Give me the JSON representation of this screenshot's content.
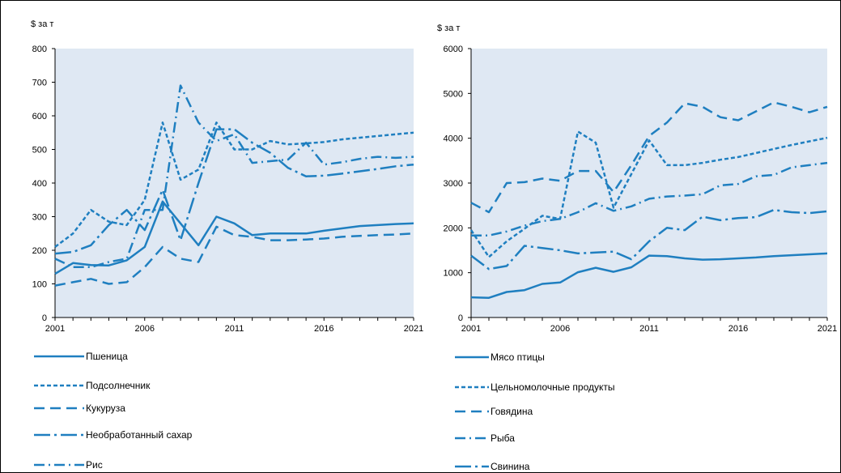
{
  "chart_data": [
    {
      "type": "line",
      "ylabel": "$ за т",
      "ylim": [
        0,
        800
      ],
      "yticks": [
        0,
        100,
        200,
        300,
        400,
        500,
        600,
        700,
        800
      ],
      "xlim": [
        2001,
        2021
      ],
      "xticks": [
        2001,
        2006,
        2011,
        2016,
        2021
      ],
      "grid": false,
      "legend_position": "bottom",
      "series": [
        {
          "name": "Пшеница",
          "style": "solid",
          "x": [
            2001,
            2002,
            2003,
            2004,
            2005,
            2006,
            2007,
            2008,
            2009,
            2010,
            2011,
            2012,
            2013,
            2014,
            2015,
            2016,
            2017,
            2018,
            2019,
            2020,
            2021
          ],
          "y": [
            130,
            162,
            156,
            155,
            170,
            210,
            345,
            280,
            215,
            300,
            280,
            245,
            250,
            250,
            250,
            258,
            265,
            272,
            275,
            278,
            280
          ]
        },
        {
          "name": "Подсолнечник",
          "style": "dashed",
          "x": [
            2001,
            2002,
            2003,
            2004,
            2005,
            2006,
            2007,
            2008,
            2009,
            2010,
            2011,
            2012,
            2013,
            2014,
            2015,
            2016,
            2017,
            2018,
            2019,
            2020,
            2021
          ],
          "y": [
            210,
            250,
            320,
            285,
            275,
            350,
            580,
            410,
            440,
            580,
            500,
            500,
            525,
            515,
            518,
            522,
            530,
            535,
            540,
            545,
            550
          ]
        },
        {
          "name": "Кукуруза",
          "style": "long-dash",
          "x": [
            2001,
            2002,
            2003,
            2004,
            2005,
            2006,
            2007,
            2008,
            2009,
            2010,
            2011,
            2012,
            2013,
            2014,
            2015,
            2016,
            2017,
            2018,
            2019,
            2020,
            2021
          ],
          "y": [
            95,
            105,
            115,
            100,
            105,
            150,
            210,
            175,
            165,
            270,
            245,
            240,
            230,
            230,
            232,
            235,
            240,
            243,
            245,
            247,
            250
          ]
        },
        {
          "name": "Необработанный сахар",
          "style": "long-dash-dot",
          "x": [
            2001,
            2002,
            2003,
            2004,
            2005,
            2006,
            2007,
            2008,
            2009,
            2010,
            2011,
            2012,
            2013,
            2014,
            2015,
            2016,
            2017,
            2018,
            2019,
            2020,
            2021
          ],
          "y": [
            190,
            195,
            215,
            275,
            320,
            260,
            380,
            230,
            400,
            560,
            560,
            520,
            490,
            445,
            420,
            422,
            428,
            435,
            442,
            450,
            455
          ]
        },
        {
          "name": "Рис",
          "style": "dash-dot",
          "x": [
            2001,
            2002,
            2003,
            2004,
            2005,
            2006,
            2007,
            2008,
            2009,
            2010,
            2011,
            2012,
            2013,
            2014,
            2015,
            2016,
            2017,
            2018,
            2019,
            2020,
            2021
          ],
          "y": [
            175,
            150,
            150,
            165,
            175,
            320,
            320,
            690,
            580,
            525,
            545,
            460,
            465,
            470,
            520,
            455,
            462,
            472,
            478,
            475,
            478
          ]
        }
      ]
    },
    {
      "type": "line",
      "ylabel": "$ за т",
      "ylim": [
        0,
        6000
      ],
      "yticks": [
        0,
        1000,
        2000,
        3000,
        4000,
        5000,
        6000
      ],
      "xlim": [
        2001,
        2021
      ],
      "xticks": [
        2001,
        2006,
        2011,
        2016,
        2021
      ],
      "grid": false,
      "legend_position": "bottom",
      "series": [
        {
          "name": "Мясо птицы",
          "style": "solid",
          "x": [
            2001,
            2002,
            2003,
            2004,
            2005,
            2006,
            2007,
            2008,
            2009,
            2010,
            2011,
            2012,
            2013,
            2014,
            2015,
            2016,
            2017,
            2018,
            2019,
            2020,
            2021
          ],
          "y": [
            450,
            440,
            570,
            610,
            750,
            780,
            1010,
            1110,
            1020,
            1120,
            1380,
            1370,
            1320,
            1290,
            1300,
            1320,
            1340,
            1370,
            1390,
            1410,
            1430
          ]
        },
        {
          "name": "Цельномолочные продукты",
          "style": "dashed",
          "x": [
            2001,
            2002,
            2003,
            2004,
            2005,
            2006,
            2007,
            2008,
            2009,
            2010,
            2011,
            2012,
            2013,
            2014,
            2015,
            2016,
            2017,
            2018,
            2019,
            2020,
            2021
          ],
          "y": [
            1950,
            1350,
            1700,
            1980,
            2270,
            2200,
            4150,
            3900,
            2450,
            3200,
            3950,
            3400,
            3400,
            3450,
            3520,
            3580,
            3670,
            3760,
            3850,
            3930,
            4010
          ]
        },
        {
          "name": "Говядина",
          "style": "long-dash",
          "x": [
            2001,
            2002,
            2003,
            2004,
            2005,
            2006,
            2007,
            2008,
            2009,
            2010,
            2011,
            2012,
            2013,
            2014,
            2015,
            2016,
            2017,
            2018,
            2019,
            2020,
            2021
          ],
          "y": [
            2560,
            2350,
            3000,
            3020,
            3100,
            3050,
            3270,
            3270,
            2800,
            3400,
            4050,
            4350,
            4780,
            4700,
            4470,
            4400,
            4600,
            4800,
            4700,
            4580,
            4700
          ]
        },
        {
          "name": "Рыба",
          "style": "dash-dot",
          "x": [
            2001,
            2002,
            2003,
            2004,
            2005,
            2006,
            2007,
            2008,
            2009,
            2010,
            2011,
            2012,
            2013,
            2014,
            2015,
            2016,
            2017,
            2018,
            2019,
            2020,
            2021
          ],
          "y": [
            1830,
            1830,
            1920,
            2050,
            2150,
            2200,
            2350,
            2550,
            2380,
            2480,
            2650,
            2700,
            2720,
            2750,
            2950,
            2980,
            3150,
            3180,
            3350,
            3400,
            3450
          ]
        },
        {
          "name": "Свинина",
          "style": "long-dash-dot",
          "x": [
            2001,
            2002,
            2003,
            2004,
            2005,
            2006,
            2007,
            2008,
            2009,
            2010,
            2011,
            2012,
            2013,
            2014,
            2015,
            2016,
            2017,
            2018,
            2019,
            2020,
            2021
          ],
          "y": [
            1380,
            1080,
            1150,
            1600,
            1550,
            1500,
            1430,
            1450,
            1470,
            1300,
            1700,
            2000,
            1950,
            2250,
            2170,
            2220,
            2240,
            2400,
            2350,
            2330,
            2370
          ]
        }
      ]
    }
  ],
  "colors": {
    "line": "#1f7fc0",
    "plot_background": "#dfe8f3",
    "axis": "#000000"
  }
}
